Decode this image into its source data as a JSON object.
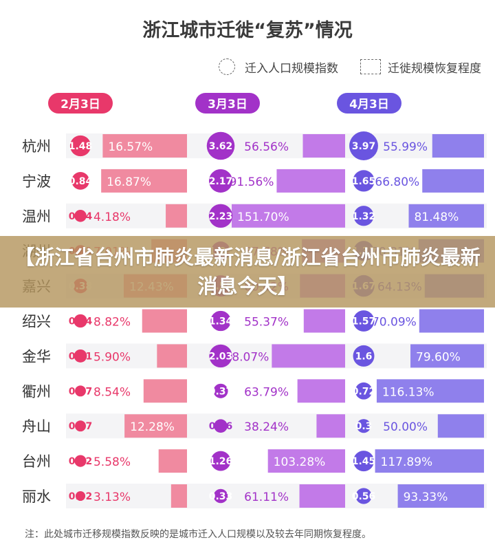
{
  "chart_data": {
    "type": "bar",
    "title": "浙江城市迁徙“复苏”情况",
    "legend": [
      {
        "name": "迁入人口规模指数",
        "symbol": "circle"
      },
      {
        "name": "迁徙规模恢复程度",
        "symbol": "square"
      }
    ],
    "categories": [
      "杭州",
      "宁波",
      "温州",
      "湖州",
      "嘉兴",
      "绍兴",
      "金华",
      "衢州",
      "舟山",
      "台州",
      "丽水"
    ],
    "panels": [
      {
        "date": "2月3日",
        "color": "#e8386a",
        "bar_color": "#f08aa0",
        "index": [
          1.48,
          0.84,
          0.14,
          0.11,
          0.38,
          0.24,
          0.21,
          0.07,
          0.07,
          0.12,
          0.02
        ],
        "recovery": [
          16.57,
          16.87,
          4.18,
          7.01,
          12.43,
          8.82,
          5.9,
          8.54,
          12.28,
          5.58,
          3.13
        ],
        "recovery_labels": [
          "16.57%",
          "16.87%",
          "4.18%",
          "7.01%",
          "12.43%",
          "8.82%",
          "5.90%",
          "8.54%",
          "12.28%",
          "5.58%",
          "3.13%"
        ]
      },
      {
        "date": "3月3日",
        "color": "#a232c8",
        "bar_color": "#c27ae8",
        "index": [
          3.62,
          2.17,
          2.23,
          1.04,
          1.58,
          1.34,
          2.03,
          0.37,
          0.26,
          1.26,
          0.33
        ],
        "recovery": [
          56.56,
          91.56,
          151.7,
          57.78,
          60.42,
          55.37,
          98.07,
          63.79,
          38.24,
          103.28,
          61.11
        ],
        "recovery_labels": [
          "56.56%",
          "91.56%",
          "151.70%",
          "57.78%",
          "60.42%",
          "55.37%",
          "98.07%",
          "63.79%",
          "38.24%",
          "103.28%",
          "61.11%"
        ]
      },
      {
        "date": "4月3日",
        "color": "#6a55e0",
        "bar_color": "#8f80ec",
        "index": [
          3.97,
          1.65,
          1.32,
          1.31,
          1.67,
          1.57,
          1.6,
          0.72,
          0.3,
          1.45,
          0.56
        ],
        "recovery": [
          55.99,
          66.8,
          81.48,
          70.81,
          64.13,
          70.09,
          79.6,
          116.13,
          50.0,
          117.89,
          93.33
        ],
        "recovery_labels": [
          "55.99%",
          "66.80%",
          "81.48%",
          "70.81%",
          "64.13%",
          "70.09%",
          "79.60%",
          "116.13%",
          "50.00%",
          "117.89%",
          "93.33%"
        ]
      }
    ],
    "footnote": "注：此处城市迁移规模指数反映的是城市迁入人口规模以及较去年同期恢复程度。"
  },
  "banner": "【浙江省台州市肺炎最新消息/浙江省台州市肺炎最新消息今天】"
}
